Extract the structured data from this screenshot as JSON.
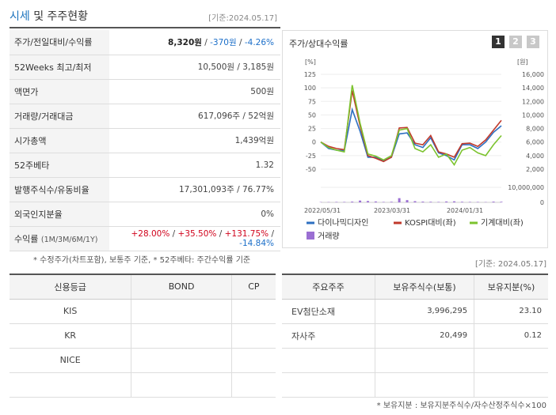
{
  "header": {
    "title_accent": "시세",
    "title_rest": " 및 주주현황",
    "base_date": "[기준:2024.05.17]"
  },
  "info_rows": [
    {
      "label": "주가/전일대비/수익률",
      "v1": "8,320원",
      "sep1": " / ",
      "v2": "-370원",
      "sep2": " / ",
      "v3": "-4.26%"
    },
    {
      "label": "52Weeks 최고/최저",
      "value": "10,500원 / 3,185원"
    },
    {
      "label": "액면가",
      "value": "500원"
    },
    {
      "label": "거래량/거래대금",
      "value": "617,096주 / 52억원"
    },
    {
      "label": "시가총액",
      "value": "1,439억원"
    },
    {
      "label": "52주베타",
      "value": "1.32"
    },
    {
      "label": "발행주식수/유동비율",
      "value": "17,301,093주 / 76.77%"
    },
    {
      "label": "외국인지분율",
      "value": "0%"
    },
    {
      "label": "수익률",
      "label_sub": "(1M/3M/6M/1Y)",
      "r1": "+28.00%",
      "r2": "+35.50%",
      "r3": "+131.75%",
      "r4": "-14.84%",
      "sep": " / "
    }
  ],
  "info_note": "* 수정주가(차트포함), 보통주 기준, * 52주베타: 주간수익률 기준",
  "chart_panel": {
    "title": "주가/상대수익률",
    "buttons": [
      "1",
      "2",
      "3"
    ],
    "active_button": "1",
    "colors": {
      "company": "#2d6fc1",
      "kospi": "#c0392b",
      "machine": "#7cc32e",
      "volume": "#9b6fd3"
    }
  },
  "chart_data": {
    "type": "line",
    "left_axis": {
      "unit": "[%]",
      "ticks": [
        "125",
        "100",
        "75",
        "50",
        "25",
        "0",
        "-25",
        "-50"
      ],
      "range": [
        -50,
        125
      ]
    },
    "right_axis": {
      "unit": "[원]",
      "ticks": [
        "16,000",
        "14,000",
        "12,000",
        "10,000",
        "8,000",
        "6,000",
        "4,000",
        "2,000"
      ],
      "range": [
        2000,
        16000
      ]
    },
    "volume_axis": {
      "ticks": [
        "10,000,000",
        "0"
      ]
    },
    "x_ticks": [
      "2022/05/31",
      "2023/03/31",
      "2024/01/31"
    ],
    "series": [
      {
        "name": "다이나믹디자인",
        "values": [
          0,
          -12,
          -15,
          -16,
          60,
          20,
          -28,
          -28,
          -35,
          -28,
          15,
          17,
          -5,
          -10,
          8,
          -20,
          -25,
          -33,
          -5,
          -5,
          -12,
          0,
          18,
          30
        ]
      },
      {
        "name": "KOSPI대비(좌)",
        "values": [
          0,
          -8,
          -12,
          -14,
          95,
          30,
          -25,
          -30,
          -36,
          -28,
          26,
          27,
          -2,
          -5,
          12,
          -18,
          -22,
          -28,
          -3,
          -2,
          -8,
          4,
          22,
          40
        ]
      },
      {
        "name": "기계대비(좌)",
        "values": [
          0,
          -10,
          -15,
          -18,
          105,
          35,
          -22,
          -26,
          -33,
          -25,
          22,
          25,
          -12,
          -18,
          -5,
          -28,
          -22,
          -42,
          -15,
          -10,
          -20,
          -25,
          -5,
          12
        ]
      }
    ],
    "volume_series": {
      "name": "거래량",
      "values": [
        0.2,
        0.2,
        0.3,
        0.3,
        0.5,
        1.2,
        0.9,
        0.6,
        0.3,
        0.4,
        2.8,
        1.5,
        0.8,
        0.5,
        0.4,
        0.3,
        0.6,
        0.7,
        0.4,
        0.3,
        0.3,
        0.2,
        0.5,
        0.4
      ]
    }
  },
  "base_date2": "[기준: 2024.05.17]",
  "credit_table": {
    "headers": [
      "신용등급",
      "BOND",
      "CP"
    ],
    "rows": [
      [
        "KIS",
        "",
        ""
      ],
      [
        "KR",
        "",
        ""
      ],
      [
        "NICE",
        "",
        ""
      ],
      [
        "",
        "",
        ""
      ]
    ]
  },
  "holder_table": {
    "headers": [
      "주요주주",
      "보유주식수(보통)",
      "보유지분(%)"
    ],
    "rows": [
      [
        "EV첨단소재",
        "3,996,295",
        "23.10"
      ],
      [
        "자사주",
        "20,499",
        "0.12"
      ],
      [
        "",
        "",
        ""
      ],
      [
        "",
        "",
        ""
      ]
    ]
  },
  "holder_note": "* 보유지분 : 보유지분주식수/자수산정주식수×100"
}
